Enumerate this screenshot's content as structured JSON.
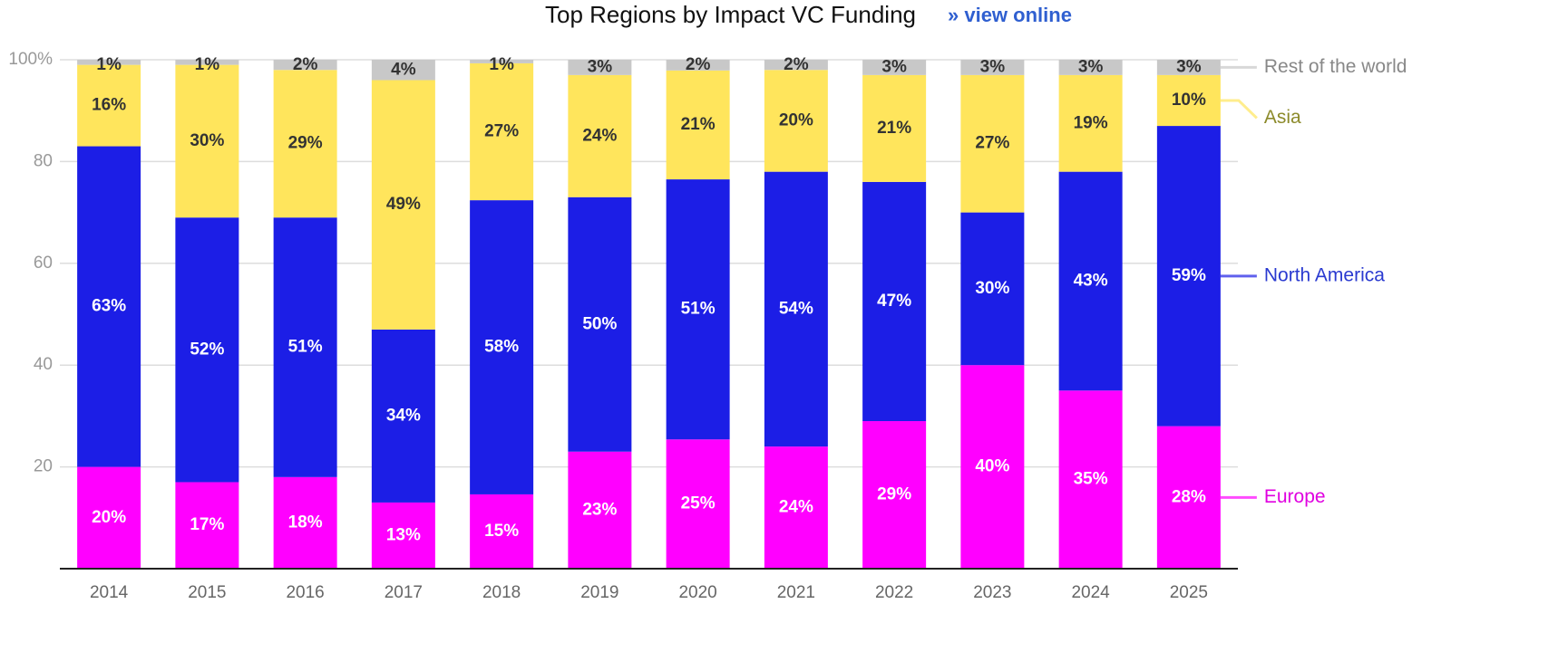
{
  "chart_data": {
    "type": "stacked_bar",
    "title": "Top Regions by Impact VC Funding",
    "subtitle": "» view online",
    "categories": [
      "2014",
      "2015",
      "2016",
      "2017",
      "2018",
      "2019",
      "2020",
      "2021",
      "2022",
      "2023",
      "2024",
      "2025"
    ],
    "series": [
      {
        "name": "Europe",
        "color": "#ff00ff",
        "values": [
          20,
          17,
          18,
          13,
          14.6,
          23,
          25.4,
          24,
          29,
          40,
          35,
          28
        ],
        "value_labels": [
          "20%",
          "17%",
          "18%",
          "13%",
          "15%",
          "23%",
          "25%",
          "24%",
          "29%",
          "40%",
          "35%",
          "28%"
        ]
      },
      {
        "name": "North America",
        "color": "#1c1ee6",
        "values": [
          63,
          52,
          51,
          34,
          57.8,
          50,
          51.1,
          54,
          47,
          30,
          43,
          59
        ],
        "value_labels": [
          "63%",
          "52%",
          "51%",
          "34%",
          "58%",
          "50%",
          "51%",
          "54%",
          "47%",
          "30%",
          "43%",
          "59%"
        ]
      },
      {
        "name": "Asia",
        "color": "#ffe55c",
        "values": [
          16,
          30,
          29,
          49,
          26.9,
          24,
          21.4,
          20,
          21,
          27,
          19,
          10
        ],
        "value_labels": [
          "16%",
          "30%",
          "29%",
          "49%",
          "27%",
          "24%",
          "21%",
          "20%",
          "21%",
          "27%",
          "19%",
          "10%"
        ]
      },
      {
        "name": "Rest of the world",
        "color": "#c8c8c8",
        "values": [
          1,
          1,
          2,
          4,
          0.7,
          3,
          2.1,
          2,
          3,
          3,
          3,
          3
        ],
        "value_labels": [
          "1%",
          "1%",
          "2%",
          "4%",
          "1%",
          "3%",
          "2%",
          "2%",
          "3%",
          "3%",
          "3%",
          "3%"
        ]
      }
    ],
    "ylim": [
      0,
      100
    ],
    "yticks": [
      20,
      40,
      60,
      80,
      {
        "value": 100,
        "label": "100%"
      }
    ],
    "grid": true,
    "legend_colors": [
      "#e000e0",
      "#2a3ad0",
      "#8c8a2a",
      "#888888"
    ]
  }
}
